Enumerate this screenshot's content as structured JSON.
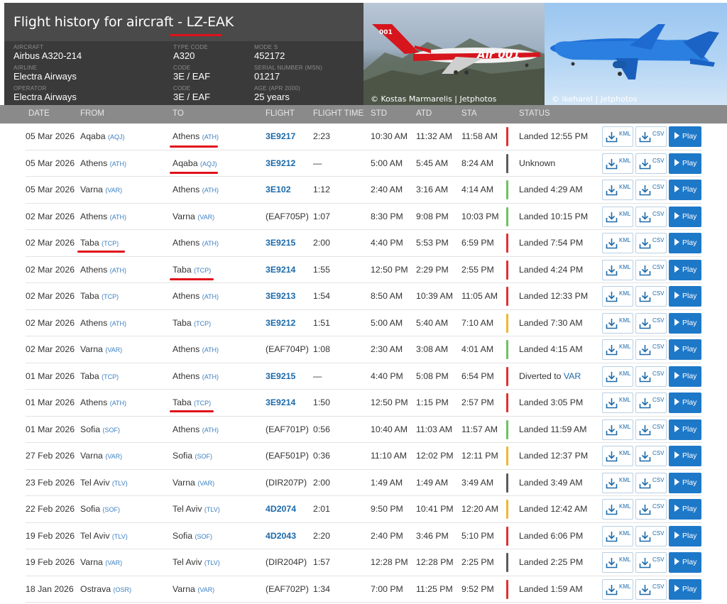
{
  "header": {
    "title_prefix": "Flight history for aircraft - ",
    "registration": "LZ-EAK",
    "fields": [
      {
        "label": "AIRCRAFT",
        "value": "Airbus A320-214"
      },
      {
        "label": "AIRLINE",
        "value": "Electra Airways"
      },
      {
        "label": "OPERATOR",
        "value": "Electra Airways"
      },
      {
        "label": "TYPE CODE",
        "value": "A320"
      },
      {
        "label": "Code",
        "value": "3E / EAF"
      },
      {
        "label": "Code",
        "value": "3E / EAF"
      },
      {
        "label": "MODE S",
        "value": "452172"
      },
      {
        "label": "SERIAL NUMBER (MSN)",
        "value": "01217"
      },
      {
        "label": "AGE (Apr 2000)",
        "value": "25 years"
      }
    ],
    "photo_credits": [
      "© Kostas Marmarelis | Jetphotos",
      "© ikeharel | Jetphotos"
    ],
    "livery_text": "Air 001",
    "tail_text": "001"
  },
  "columns": [
    "DATE",
    "FROM",
    "TO",
    "FLIGHT",
    "FLIGHT TIME",
    "STD",
    "ATD",
    "STA",
    "STATUS"
  ],
  "buttons": {
    "kml": "KML",
    "csv": "CSV",
    "play": "Play"
  },
  "colors": {
    "red": "#e03030",
    "green": "#6cc35f",
    "yellow": "#f0b830",
    "gray": "#5a5a5a",
    "accent": "#1e78c8"
  },
  "flights": [
    {
      "date": "05 Mar 2026",
      "from": "Aqaba",
      "from_code": "(AQJ)",
      "to": "Athens",
      "to_code": "(ATH)",
      "flight": "3E9217",
      "flight_time": "2:23",
      "std": "10:30 AM",
      "atd": "11:32 AM",
      "sta": "11:58 AM",
      "status": "Landed 12:55 PM",
      "status_link": "",
      "bar": "red"
    },
    {
      "date": "05 Mar 2026",
      "from": "Athens",
      "from_code": "(ATH)",
      "to": "Aqaba",
      "to_code": "(AQJ)",
      "flight": "3E9212",
      "flight_time": "—",
      "std": "5:00 AM",
      "atd": "5:45 AM",
      "sta": "8:24 AM",
      "status": "Unknown",
      "status_link": "",
      "bar": "gray"
    },
    {
      "date": "05 Mar 2026",
      "from": "Varna",
      "from_code": "(VAR)",
      "to": "Athens",
      "to_code": "(ATH)",
      "flight": "3E102",
      "flight_time": "1:12",
      "std": "2:40 AM",
      "atd": "3:16 AM",
      "sta": "4:14 AM",
      "status": "Landed 4:29 AM",
      "status_link": "",
      "bar": "green"
    },
    {
      "date": "02 Mar 2026",
      "from": "Athens",
      "from_code": "(ATH)",
      "to": "Varna",
      "to_code": "(VAR)",
      "flight": "(EAF705P)",
      "flight_time": "1:07",
      "std": "8:30 PM",
      "atd": "9:08 PM",
      "sta": "10:03 PM",
      "status": "Landed 10:15 PM",
      "status_link": "",
      "bar": "green"
    },
    {
      "date": "02 Mar 2026",
      "from": "Taba",
      "from_code": "(TCP)",
      "to": "Athens",
      "to_code": "(ATH)",
      "flight": "3E9215",
      "flight_time": "2:00",
      "std": "4:40 PM",
      "atd": "5:53 PM",
      "sta": "6:59 PM",
      "status": "Landed 7:54 PM",
      "status_link": "",
      "bar": "red"
    },
    {
      "date": "02 Mar 2026",
      "from": "Athens",
      "from_code": "(ATH)",
      "to": "Taba",
      "to_code": "(TCP)",
      "flight": "3E9214",
      "flight_time": "1:55",
      "std": "12:50 PM",
      "atd": "2:29 PM",
      "sta": "2:55 PM",
      "status": "Landed 4:24 PM",
      "status_link": "",
      "bar": "red"
    },
    {
      "date": "02 Mar 2026",
      "from": "Taba",
      "from_code": "(TCP)",
      "to": "Athens",
      "to_code": "(ATH)",
      "flight": "3E9213",
      "flight_time": "1:54",
      "std": "8:50 AM",
      "atd": "10:39 AM",
      "sta": "11:05 AM",
      "status": "Landed 12:33 PM",
      "status_link": "",
      "bar": "red"
    },
    {
      "date": "02 Mar 2026",
      "from": "Athens",
      "from_code": "(ATH)",
      "to": "Taba",
      "to_code": "(TCP)",
      "flight": "3E9212",
      "flight_time": "1:51",
      "std": "5:00 AM",
      "atd": "5:40 AM",
      "sta": "7:10 AM",
      "status": "Landed 7:30 AM",
      "status_link": "",
      "bar": "yellow"
    },
    {
      "date": "02 Mar 2026",
      "from": "Varna",
      "from_code": "(VAR)",
      "to": "Athens",
      "to_code": "(ATH)",
      "flight": "(EAF704P)",
      "flight_time": "1:08",
      "std": "2:30 AM",
      "atd": "3:08 AM",
      "sta": "4:01 AM",
      "status": "Landed 4:15 AM",
      "status_link": "",
      "bar": "green"
    },
    {
      "date": "01 Mar 2026",
      "from": "Taba",
      "from_code": "(TCP)",
      "to": "Athens",
      "to_code": "(ATH)",
      "flight": "3E9215",
      "flight_time": "—",
      "std": "4:40 PM",
      "atd": "5:08 PM",
      "sta": "6:54 PM",
      "status": "Diverted to ",
      "status_link": "VAR",
      "bar": "red"
    },
    {
      "date": "01 Mar 2026",
      "from": "Athens",
      "from_code": "(ATH)",
      "to": "Taba",
      "to_code": "(TCP)",
      "flight": "3E9214",
      "flight_time": "1:50",
      "std": "12:50 PM",
      "atd": "1:15 PM",
      "sta": "2:57 PM",
      "status": "Landed 3:05 PM",
      "status_link": "",
      "bar": "red"
    },
    {
      "date": "01 Mar 2026",
      "from": "Sofia",
      "from_code": "(SOF)",
      "to": "Athens",
      "to_code": "(ATH)",
      "flight": "(EAF701P)",
      "flight_time": "0:56",
      "std": "10:40 AM",
      "atd": "11:03 AM",
      "sta": "11:57 AM",
      "status": "Landed 11:59 AM",
      "status_link": "",
      "bar": "green"
    },
    {
      "date": "27 Feb 2026",
      "from": "Varna",
      "from_code": "(VAR)",
      "to": "Sofia",
      "to_code": "(SOF)",
      "flight": "(EAF501P)",
      "flight_time": "0:36",
      "std": "11:10 AM",
      "atd": "12:02 PM",
      "sta": "12:11 PM",
      "status": "Landed 12:37 PM",
      "status_link": "",
      "bar": "yellow"
    },
    {
      "date": "23 Feb 2026",
      "from": "Tel Aviv",
      "from_code": "(TLV)",
      "to": "Varna",
      "to_code": "(VAR)",
      "flight": "(DIR207P)",
      "flight_time": "2:00",
      "std": "1:49 AM",
      "atd": "1:49 AM",
      "sta": "3:49 AM",
      "status": "Landed 3:49 AM",
      "status_link": "",
      "bar": "gray"
    },
    {
      "date": "22 Feb 2026",
      "from": "Sofia",
      "from_code": "(SOF)",
      "to": "Tel Aviv",
      "to_code": "(TLV)",
      "flight": "4D2074",
      "flight_time": "2:01",
      "std": "9:50 PM",
      "atd": "10:41 PM",
      "sta": "12:20 AM",
      "status": "Landed 12:42 AM",
      "status_link": "",
      "bar": "yellow"
    },
    {
      "date": "19 Feb 2026",
      "from": "Tel Aviv",
      "from_code": "(TLV)",
      "to": "Sofia",
      "to_code": "(SOF)",
      "flight": "4D2043",
      "flight_time": "2:20",
      "std": "2:40 PM",
      "atd": "3:46 PM",
      "sta": "5:10 PM",
      "status": "Landed 6:06 PM",
      "status_link": "",
      "bar": "red"
    },
    {
      "date": "19 Feb 2026",
      "from": "Varna",
      "from_code": "(VAR)",
      "to": "Tel Aviv",
      "to_code": "(TLV)",
      "flight": "(DIR204P)",
      "flight_time": "1:57",
      "std": "12:28 PM",
      "atd": "12:28 PM",
      "sta": "2:25 PM",
      "status": "Landed 2:25 PM",
      "status_link": "",
      "bar": "gray"
    },
    {
      "date": "18 Jan 2026",
      "from": "Ostrava",
      "from_code": "(OSR)",
      "to": "Varna",
      "to_code": "(VAR)",
      "flight": "(EAF702P)",
      "flight_time": "1:34",
      "std": "7:00 PM",
      "atd": "11:25 PM",
      "sta": "9:52 PM",
      "status": "Landed 1:59 AM",
      "status_link": "",
      "bar": "red"
    }
  ]
}
